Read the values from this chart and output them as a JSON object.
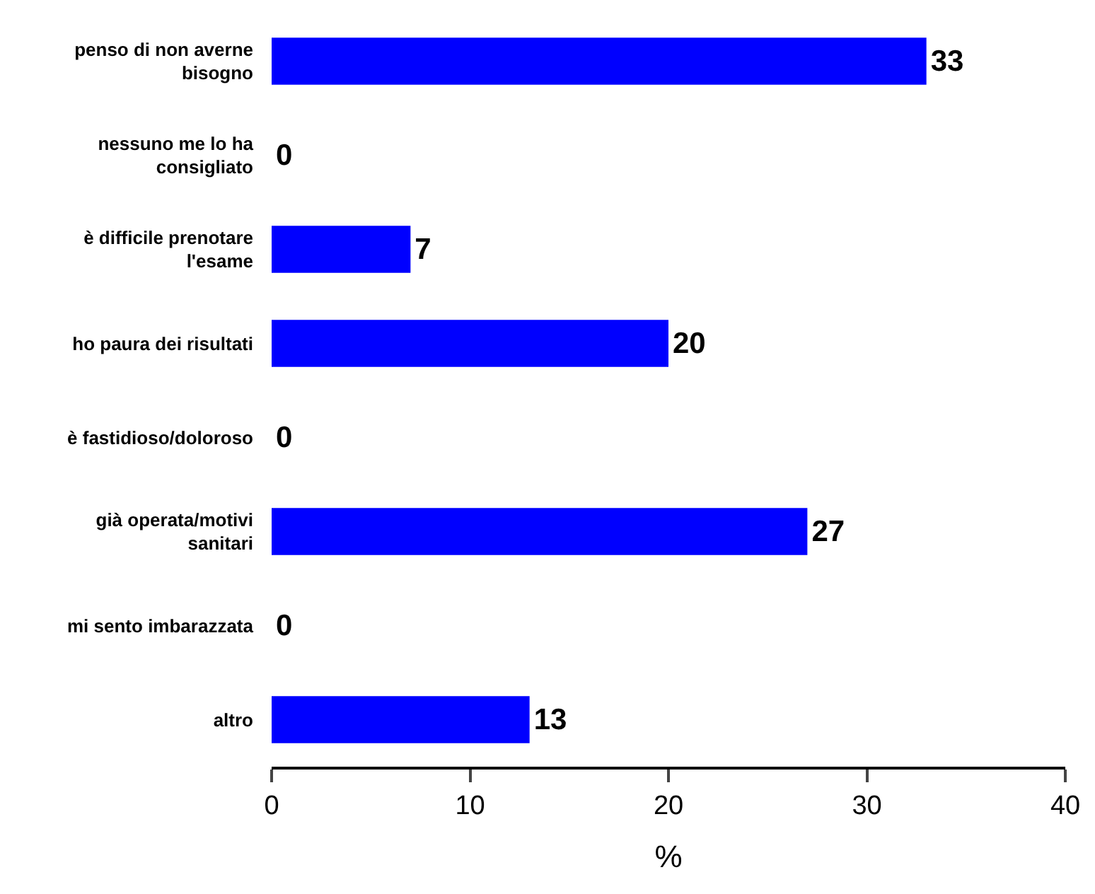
{
  "chart_data": {
    "type": "bar",
    "orientation": "horizontal",
    "xlabel": "%",
    "categories": [
      "penso di non averne\nbisogno",
      "nessuno me lo ha\nconsigliato",
      "è difficile prenotare\nl'esame",
      "ho paura dei risultati",
      "è fastidioso/doloroso",
      "già operata/motivi\nsanitari",
      "mi sento imbarazzata",
      "altro"
    ],
    "values": [
      33,
      0,
      7,
      20,
      0,
      27,
      0,
      13
    ],
    "color": "#0000ff",
    "data_labels": true,
    "xlim": [
      0,
      40
    ],
    "xticks": [
      0,
      10,
      20,
      30,
      40
    ]
  }
}
